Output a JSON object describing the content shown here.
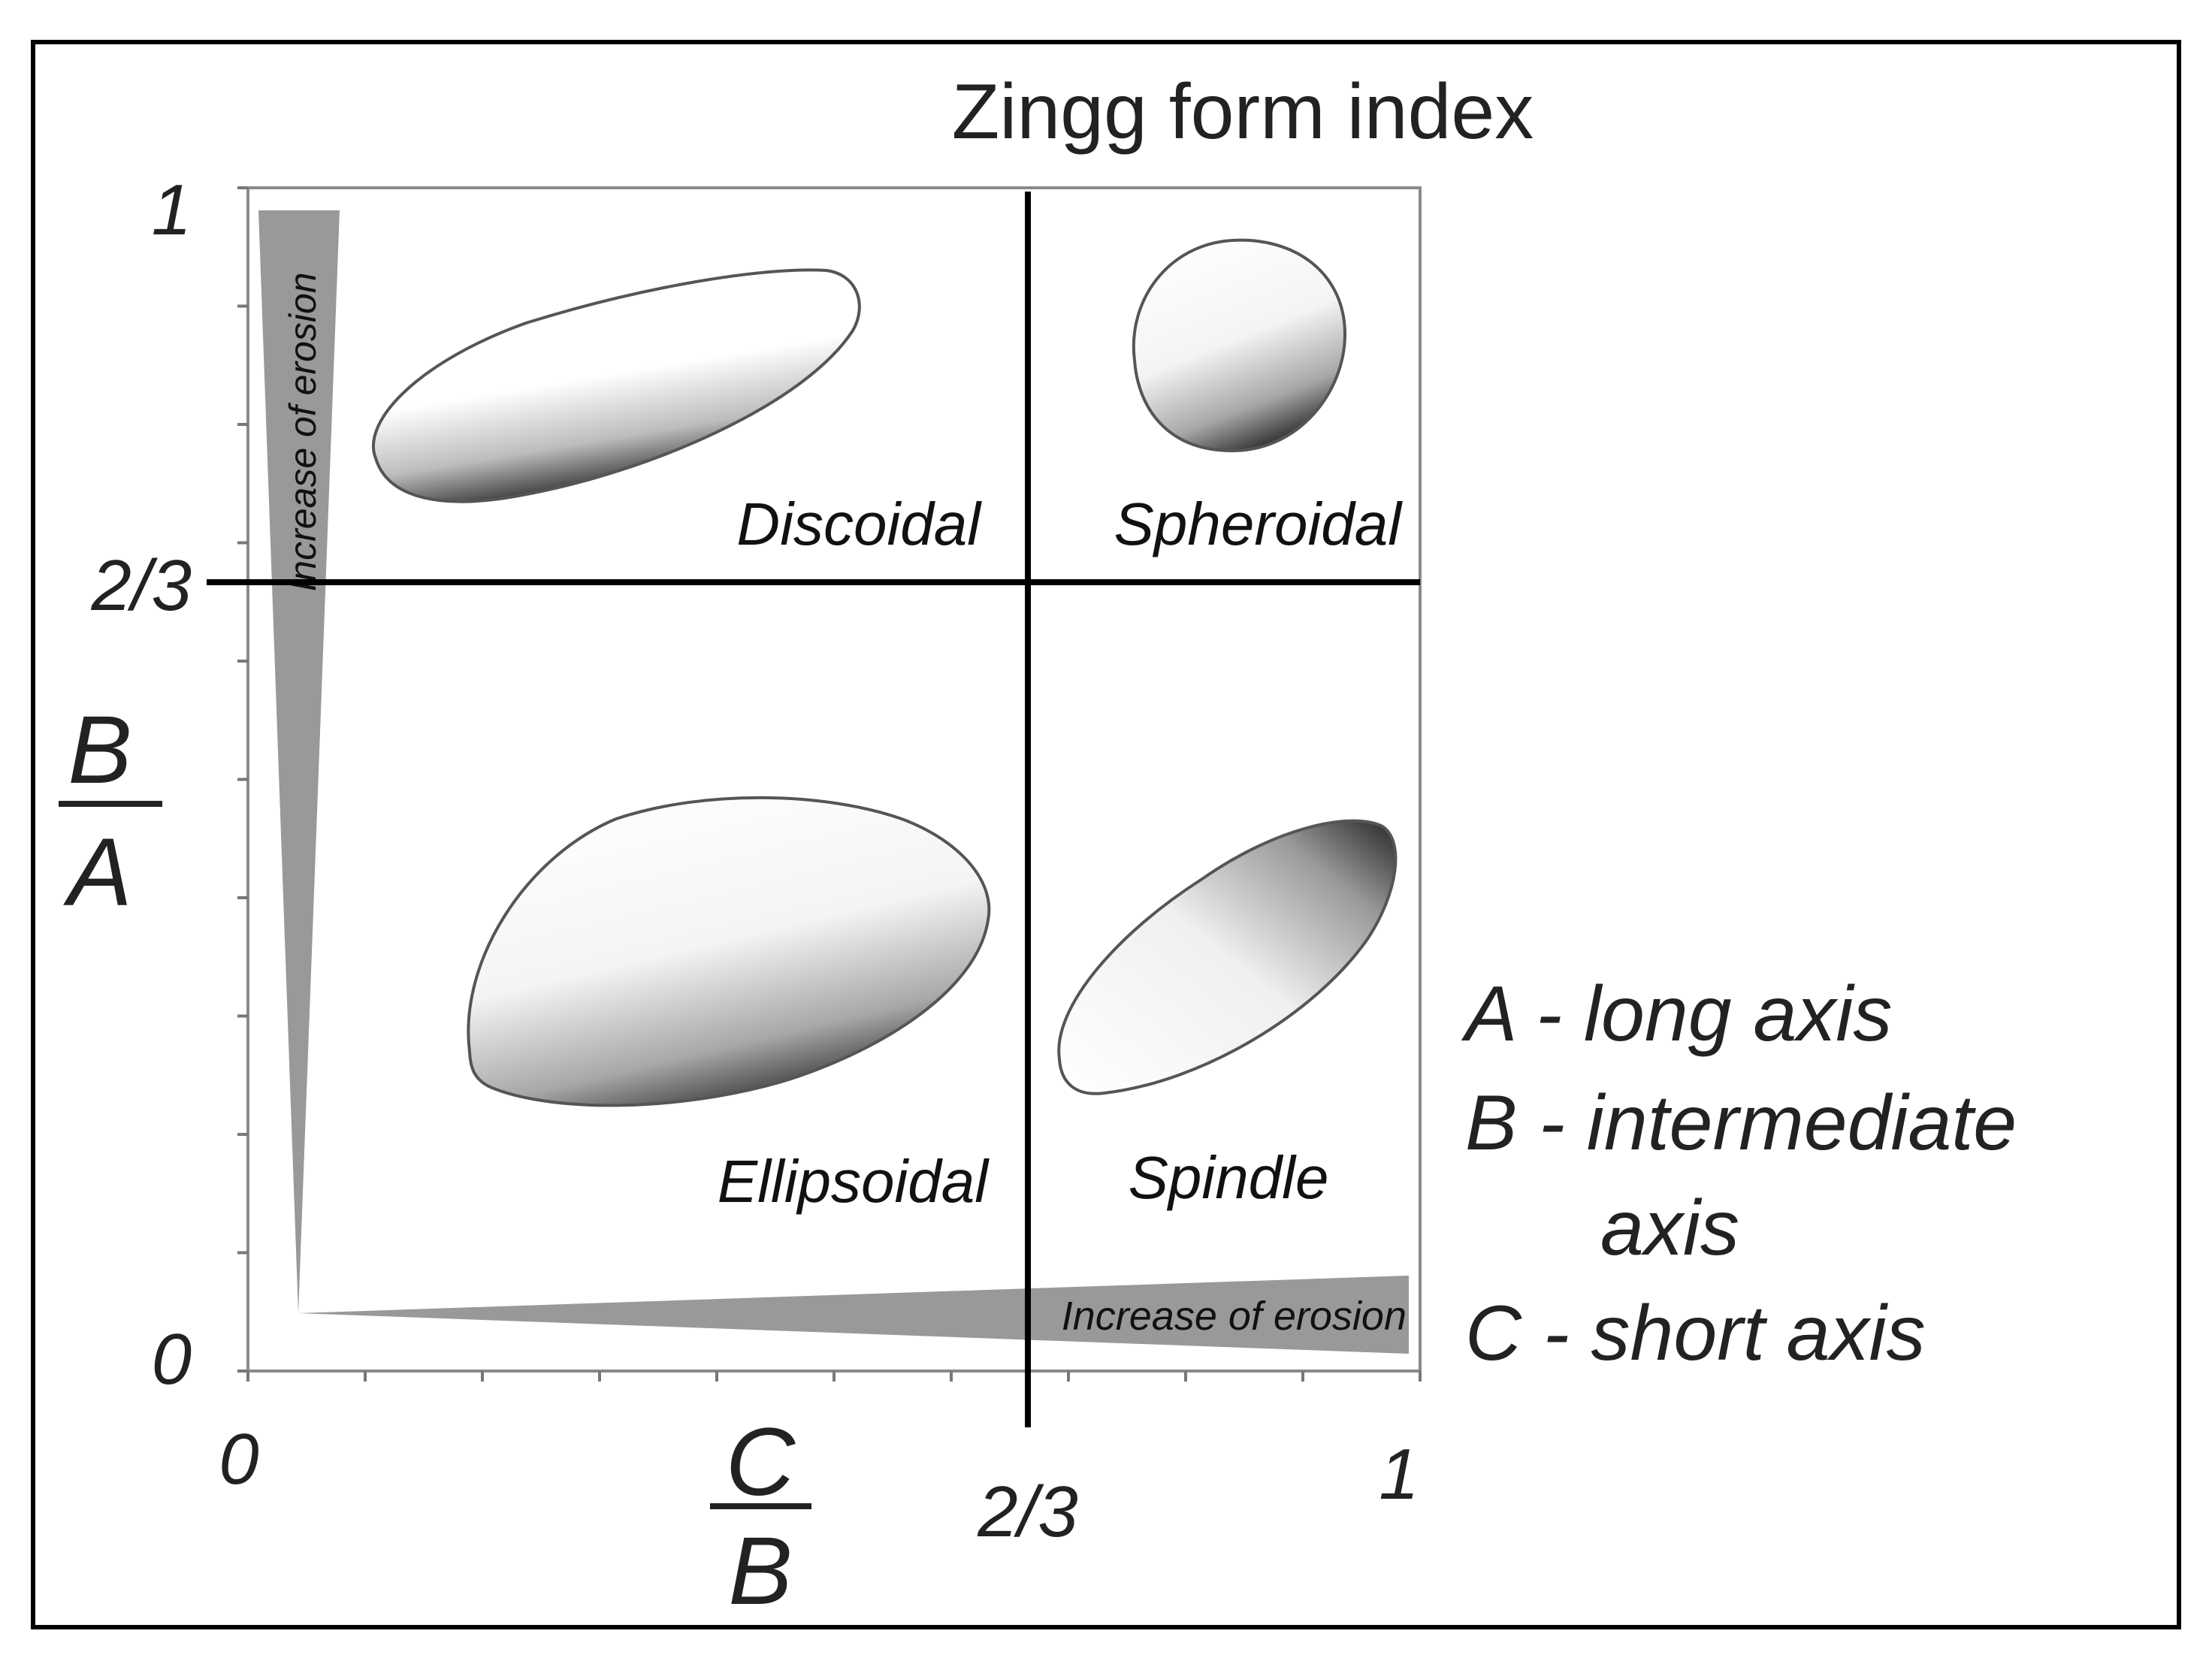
{
  "title": "Zingg form index",
  "axes": {
    "y": {
      "ticks": [
        {
          "value": 1,
          "label": "1"
        },
        {
          "value": 0.6667,
          "label": "2/3"
        },
        {
          "value": 0,
          "label": "0"
        }
      ],
      "numerator": "B",
      "denominator": "A"
    },
    "x": {
      "ticks": [
        {
          "value": 0,
          "label": "0"
        },
        {
          "value": 0.6667,
          "label": "2/3"
        },
        {
          "value": 1,
          "label": "1"
        }
      ],
      "numerator": "C",
      "denominator": "B"
    },
    "divider": 0.6667,
    "range": [
      0,
      1
    ]
  },
  "regions": [
    {
      "label": "Discoidal"
    },
    {
      "label": "Spheroidal"
    },
    {
      "label": "Ellipsoidal"
    },
    {
      "label": "Spindle"
    }
  ],
  "erosion": {
    "vertical_label": "Increase of erosion",
    "horizontal_label": "Increase of erosion",
    "wedge_color": "#999999"
  },
  "legend": [
    {
      "line1": "A - long axis"
    },
    {
      "line1": "B - intermediate",
      "line2": "axis"
    },
    {
      "line1": "C - short axis"
    }
  ]
}
